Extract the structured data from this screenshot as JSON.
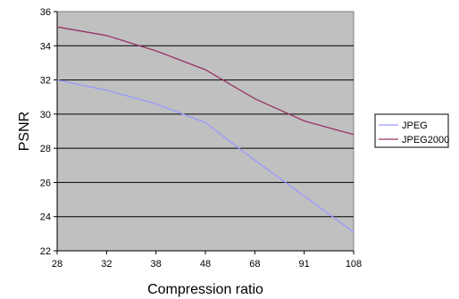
{
  "chart_data": {
    "type": "line",
    "categories": [
      "28",
      "32",
      "38",
      "48",
      "68",
      "91",
      "108"
    ],
    "series": [
      {
        "name": "JPEG",
        "color": "#9999ff",
        "values": [
          32.0,
          31.4,
          30.6,
          29.5,
          27.3,
          25.2,
          23.1
        ]
      },
      {
        "name": "JPEG2000",
        "color": "#993366",
        "values": [
          35.1,
          34.6,
          33.7,
          32.6,
          30.9,
          29.6,
          28.8
        ]
      }
    ],
    "xlabel": "Compression ratio",
    "ylabel": "PSNR",
    "ylim": [
      22,
      36
    ],
    "yticks": [
      22,
      24,
      26,
      28,
      30,
      32,
      34,
      36
    ],
    "grid": true,
    "plot_background": "#c0c0c0",
    "legend_position": "right"
  }
}
